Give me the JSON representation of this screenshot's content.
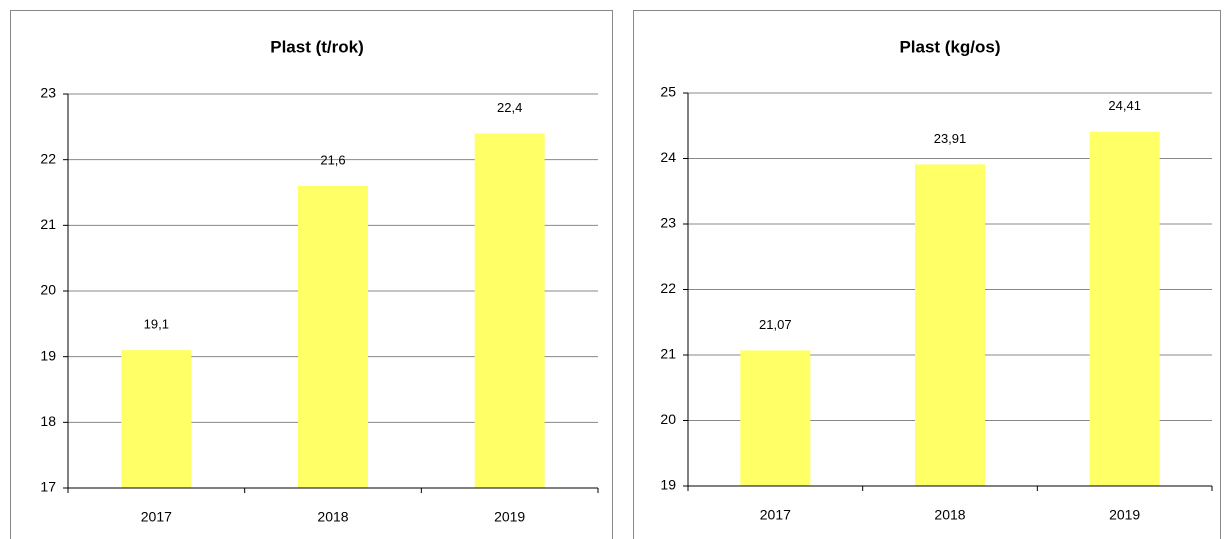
{
  "chart_data": [
    {
      "type": "bar",
      "title": "Plast (t/rok)",
      "categories": [
        "2017",
        "2018",
        "2019"
      ],
      "values": [
        19.1,
        21.6,
        22.4
      ],
      "value_labels": [
        "19,1",
        "21,6",
        "22,4"
      ],
      "color": "#ffff66",
      "ylim": [
        17,
        23
      ],
      "yticks": [
        17,
        18,
        19,
        20,
        21,
        22,
        23
      ],
      "grid": true
    },
    {
      "type": "bar",
      "title": "Plast (kg/os)",
      "categories": [
        "2017",
        "2018",
        "2019"
      ],
      "values": [
        21.07,
        23.91,
        24.41
      ],
      "value_labels": [
        "21,07",
        "23,91",
        "24,41"
      ],
      "color": "#ffff66",
      "ylim": [
        19,
        25
      ],
      "yticks": [
        19,
        20,
        21,
        22,
        23,
        24,
        25
      ],
      "grid": true
    }
  ]
}
